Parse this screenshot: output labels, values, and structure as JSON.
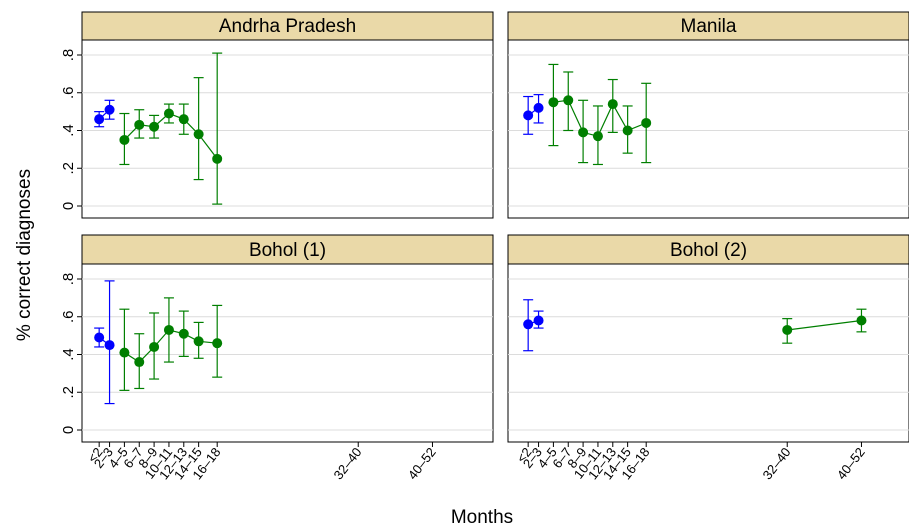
{
  "chart_data": {
    "type": "scatter",
    "xlabel": "Months",
    "ylabel": "% correct diagnoses",
    "ylim": [
      0,
      0.8
    ],
    "y_ticks": [
      {
        "v": 0,
        "label": "0"
      },
      {
        "v": 0.2,
        "label": ".2"
      },
      {
        "v": 0.4,
        "label": ".4"
      },
      {
        "v": 0.6,
        "label": ".6"
      },
      {
        "v": 0.8,
        "label": ".8"
      }
    ],
    "x_tick_labels": [
      "<2",
      "2–3",
      "4–5",
      "6–7",
      "8–9",
      "10–11",
      "12–13",
      "14–15",
      "16–18",
      "32–40",
      "40–52"
    ],
    "colors": {
      "blue": "#0000ff",
      "green": "#007f00",
      "strip": "#ead9a8",
      "grid": "#dcdcdc"
    },
    "panels": [
      {
        "title": "Andrha Pradesh",
        "blue": [
          {
            "x": "<2",
            "y": 0.46,
            "lo": 0.42,
            "hi": 0.5
          },
          {
            "x": "2–3",
            "y": 0.51,
            "lo": 0.46,
            "hi": 0.56
          }
        ],
        "green": [
          {
            "x": "4–5",
            "y": 0.35,
            "lo": 0.22,
            "hi": 0.49
          },
          {
            "x": "6–7",
            "y": 0.43,
            "lo": 0.36,
            "hi": 0.51
          },
          {
            "x": "8–9",
            "y": 0.42,
            "lo": 0.36,
            "hi": 0.48
          },
          {
            "x": "10–11",
            "y": 0.49,
            "lo": 0.44,
            "hi": 0.54
          },
          {
            "x": "12–13",
            "y": 0.46,
            "lo": 0.38,
            "hi": 0.54
          },
          {
            "x": "14–15",
            "y": 0.38,
            "lo": 0.14,
            "hi": 0.68
          },
          {
            "x": "16–18",
            "y": 0.25,
            "lo": 0.01,
            "hi": 0.81
          }
        ]
      },
      {
        "title": "Manila",
        "blue": [
          {
            "x": "<2",
            "y": 0.48,
            "lo": 0.38,
            "hi": 0.58
          },
          {
            "x": "2–3",
            "y": 0.52,
            "lo": 0.44,
            "hi": 0.59
          }
        ],
        "green": [
          {
            "x": "4–5",
            "y": 0.55,
            "lo": 0.32,
            "hi": 0.75
          },
          {
            "x": "6–7",
            "y": 0.56,
            "lo": 0.4,
            "hi": 0.71
          },
          {
            "x": "8–9",
            "y": 0.39,
            "lo": 0.23,
            "hi": 0.56
          },
          {
            "x": "10–11",
            "y": 0.37,
            "lo": 0.22,
            "hi": 0.53
          },
          {
            "x": "12–13",
            "y": 0.54,
            "lo": 0.39,
            "hi": 0.67
          },
          {
            "x": "14–15",
            "y": 0.4,
            "lo": 0.28,
            "hi": 0.53
          },
          {
            "x": "16–18",
            "y": 0.44,
            "lo": 0.23,
            "hi": 0.65
          }
        ]
      },
      {
        "title": "Bohol (1)",
        "blue": [
          {
            "x": "<2",
            "y": 0.49,
            "lo": 0.44,
            "hi": 0.54
          },
          {
            "x": "2–3",
            "y": 0.45,
            "lo": 0.14,
            "hi": 0.79
          }
        ],
        "green": [
          {
            "x": "4–5",
            "y": 0.41,
            "lo": 0.21,
            "hi": 0.64
          },
          {
            "x": "6–7",
            "y": 0.36,
            "lo": 0.22,
            "hi": 0.51
          },
          {
            "x": "8–9",
            "y": 0.44,
            "lo": 0.27,
            "hi": 0.62
          },
          {
            "x": "10–11",
            "y": 0.53,
            "lo": 0.36,
            "hi": 0.7
          },
          {
            "x": "12–13",
            "y": 0.51,
            "lo": 0.39,
            "hi": 0.63
          },
          {
            "x": "14–15",
            "y": 0.47,
            "lo": 0.38,
            "hi": 0.57
          },
          {
            "x": "16–18",
            "y": 0.46,
            "lo": 0.28,
            "hi": 0.66
          }
        ]
      },
      {
        "title": "Bohol (2)",
        "blue": [
          {
            "x": "<2",
            "y": 0.56,
            "lo": 0.42,
            "hi": 0.69
          },
          {
            "x": "2–3",
            "y": 0.58,
            "lo": 0.54,
            "hi": 0.63
          }
        ],
        "green": [
          {
            "x": "32–40",
            "y": 0.53,
            "lo": 0.46,
            "hi": 0.59
          },
          {
            "x": "40–52",
            "y": 0.58,
            "lo": 0.52,
            "hi": 0.64
          }
        ]
      }
    ]
  }
}
